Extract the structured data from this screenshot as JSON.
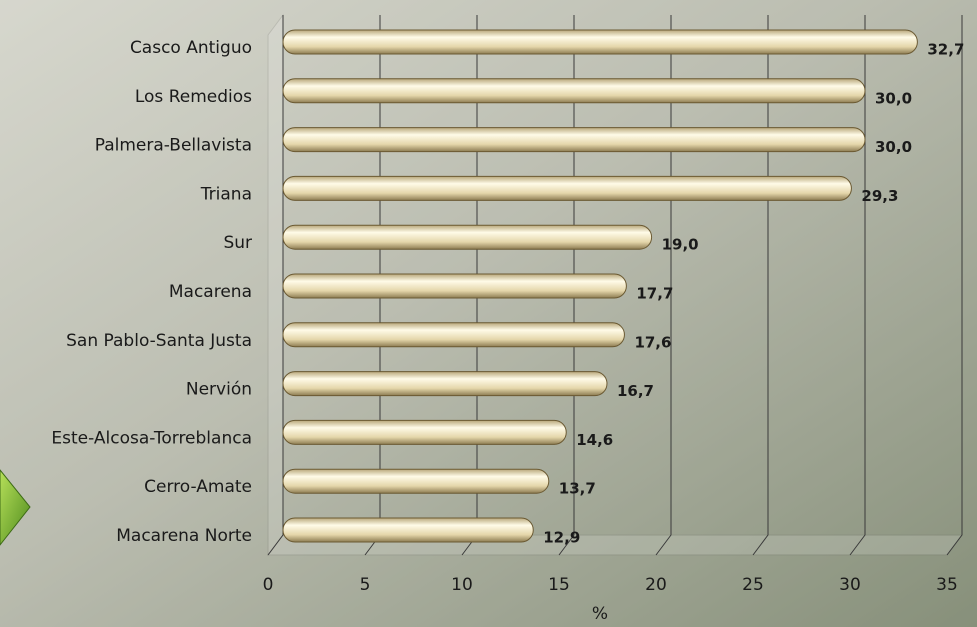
{
  "chart_data": {
    "type": "bar",
    "orientation": "horizontal",
    "categories": [
      "Casco Antiguo",
      "Los Remedios",
      "Palmera-Bellavista",
      "Triana",
      "Sur",
      "Macarena",
      "San Pablo-Santa Justa",
      "Nervión",
      "Este-Alcosa-Torreblanca",
      "Cerro-Amate",
      "Macarena Norte"
    ],
    "values": [
      32.7,
      30.0,
      30.0,
      29.3,
      19.0,
      17.7,
      17.6,
      16.7,
      14.6,
      13.7,
      12.9
    ],
    "value_labels": [
      "32,7",
      "30,0",
      "30,0",
      "29,3",
      "19,0",
      "17,7",
      "17,6",
      "16,7",
      "14,6",
      "13,7",
      "12,9"
    ],
    "color": "#e8dcb4",
    "xlim": [
      0,
      35
    ],
    "xticks": [
      0,
      5,
      10,
      15,
      20,
      25,
      30,
      35
    ],
    "xlabel": "%",
    "grid": true
  }
}
